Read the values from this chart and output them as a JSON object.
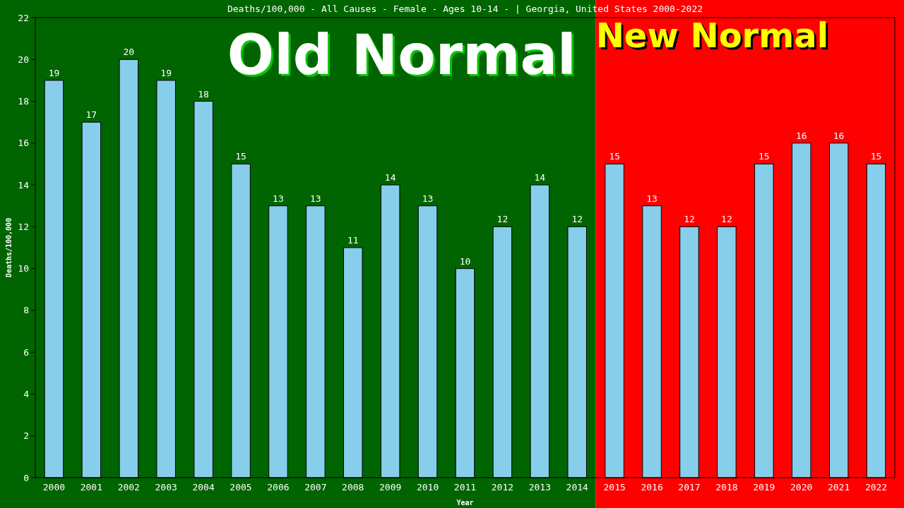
{
  "chart_data": {
    "type": "bar",
    "title": "Deaths/100,000 - All Causes - Female - Ages 10-14 -  | Georgia, United States 2000-2022",
    "xlabel": "Year",
    "ylabel": "Deaths/100,000",
    "categories": [
      "2000",
      "2001",
      "2002",
      "2003",
      "2004",
      "2005",
      "2006",
      "2007",
      "2008",
      "2009",
      "2010",
      "2011",
      "2012",
      "2013",
      "2014",
      "2015",
      "2016",
      "2017",
      "2018",
      "2019",
      "2020",
      "2021",
      "2022"
    ],
    "values": [
      19,
      17,
      20,
      19,
      18,
      15,
      13,
      13,
      11,
      14,
      13,
      10,
      12,
      14,
      12,
      15,
      13,
      12,
      12,
      15,
      16,
      16,
      15
    ],
    "color": "#87ceeb",
    "data_labels": true,
    "ylim": [
      0,
      22
    ],
    "yticks": [
      0,
      2,
      4,
      6,
      8,
      10,
      12,
      14,
      16,
      18,
      20,
      22
    ],
    "grid": false,
    "bands": [
      {
        "axis": "x",
        "from": "2000",
        "to": "2014",
        "label": "Old Normal",
        "color": "#006400"
      },
      {
        "axis": "x",
        "from": "2015",
        "to": "2022",
        "label": "New Normal",
        "color": "#ff0000"
      }
    ]
  }
}
